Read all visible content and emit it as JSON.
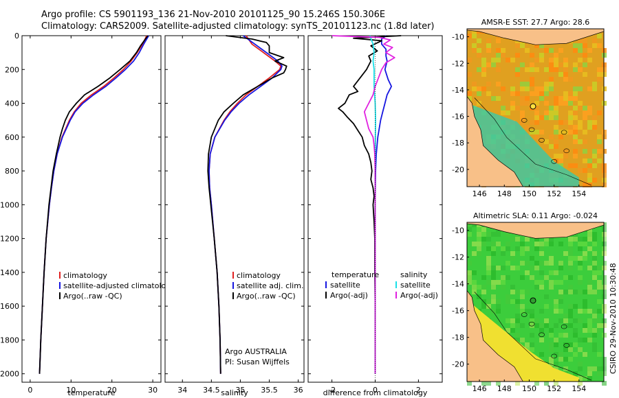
{
  "header": {
    "line1": "Argo profile: CS 5901193_136 21-Nov-2010 20101125_90 15.246S 150.306E",
    "line2": "Climatology: CARS2009. Satellite-adjusted climatology: synTS_20101123.nc (1.8d later)"
  },
  "colors": {
    "climatology": "#e02020",
    "satellite": "#1515e0",
    "argo": "#000000",
    "satellite_salinity": "#18e0e8",
    "argo_adj_salinity": "#e020e0",
    "land": "#f8c088",
    "sst_ocean": "#e0a020",
    "sla_ocean": "#3ccd3c"
  },
  "chart_data": [
    {
      "id": "temperature",
      "type": "line",
      "xlabel": "temperature",
      "ylabel": "",
      "xlim": [
        -2,
        32
      ],
      "ylim": [
        2050,
        0
      ],
      "xticks": [
        "0",
        "10",
        "20",
        "30"
      ],
      "yticks": [
        "0",
        "200",
        "400",
        "600",
        "800",
        "1000",
        "1200",
        "1400",
        "1600",
        "1800",
        "2000"
      ],
      "legend": [
        "climatology",
        "satellite-adjusted climatology",
        "Argo(..raw -QC)"
      ],
      "series": [
        {
          "name": "climatology",
          "depth": [
            0,
            50,
            100,
            150,
            200,
            250,
            300,
            350,
            400,
            450,
            500,
            600,
            700,
            800,
            900,
            1000,
            1200,
            1400,
            1600,
            1800,
            2000
          ],
          "values": [
            28.5,
            27.5,
            26.2,
            24.7,
            22.8,
            20.5,
            18.0,
            15.0,
            12.5,
            10.8,
            9.6,
            7.8,
            6.6,
            5.8,
            5.2,
            4.7,
            3.9,
            3.4,
            3.0,
            2.6,
            2.3
          ]
        },
        {
          "name": "satellite-adjusted climatology",
          "depth": [
            0,
            50,
            100,
            150,
            200,
            250,
            300,
            350,
            400,
            450,
            500,
            600,
            700,
            800,
            900,
            1000,
            1200,
            1400,
            1600,
            1800,
            2000
          ],
          "values": [
            29.0,
            27.8,
            26.7,
            25.3,
            23.3,
            21.0,
            18.5,
            15.5,
            12.9,
            11.0,
            9.8,
            7.9,
            6.6,
            5.8,
            5.2,
            4.7,
            3.9,
            3.4,
            3.0,
            2.6,
            2.3
          ]
        },
        {
          "name": "Argo(..raw -QC)",
          "depth": [
            0,
            20,
            60,
            100,
            150,
            200,
            250,
            300,
            350,
            400,
            450,
            500,
            550,
            600,
            700,
            800,
            900,
            1000,
            1200,
            1400,
            1600,
            1800,
            2000
          ],
          "values": [
            28.8,
            28.2,
            27.0,
            26.0,
            24.4,
            22.0,
            19.5,
            16.6,
            13.3,
            11.3,
            9.6,
            8.6,
            7.9,
            7.3,
            6.4,
            5.6,
            5.1,
            4.6,
            3.9,
            3.4,
            3.0,
            2.6,
            2.3
          ]
        }
      ]
    },
    {
      "id": "salinity",
      "type": "line",
      "xlabel": "salinity",
      "xlim": [
        33.7,
        36.1
      ],
      "ylim": [
        2050,
        0
      ],
      "xticks": [
        "34",
        "34.5",
        "35",
        "35.5",
        "36"
      ],
      "legend": [
        "climatology",
        "satellite adj. clim.",
        "Argo(..raw -QC)"
      ],
      "annotation": [
        "Argo AUSTRALIA",
        "PI: Susan Wijffels"
      ],
      "series": [
        {
          "name": "climatology",
          "depth": [
            0,
            50,
            100,
            150,
            180,
            200,
            250,
            300,
            350,
            400,
            450,
            500,
            600,
            700,
            800,
            900,
            1000,
            1200,
            1400,
            1600,
            1800,
            2000
          ],
          "values": [
            35.1,
            35.2,
            35.4,
            35.6,
            35.7,
            35.68,
            35.5,
            35.3,
            35.1,
            34.95,
            34.82,
            34.72,
            34.56,
            34.48,
            34.46,
            34.47,
            34.5,
            34.55,
            34.6,
            34.63,
            34.65,
            34.66
          ]
        },
        {
          "name": "satellite adj. clim.",
          "depth": [
            0,
            50,
            100,
            150,
            180,
            200,
            250,
            300,
            350,
            400,
            450,
            500,
            600,
            700,
            800,
            900,
            1000,
            1200,
            1400,
            1600,
            1800,
            2000
          ],
          "values": [
            35.05,
            35.25,
            35.45,
            35.65,
            35.72,
            35.7,
            35.55,
            35.35,
            35.15,
            34.98,
            34.84,
            34.73,
            34.56,
            34.48,
            34.46,
            34.47,
            34.5,
            34.55,
            34.6,
            34.63,
            34.65,
            34.66
          ]
        },
        {
          "name": "Argo(..raw -QC)",
          "depth": [
            0,
            20,
            40,
            60,
            100,
            130,
            150,
            180,
            200,
            220,
            250,
            300,
            350,
            400,
            450,
            500,
            600,
            700,
            800,
            900,
            1000,
            1200,
            1400,
            1600,
            1800,
            2000
          ],
          "values": [
            34.75,
            35.2,
            35.45,
            35.5,
            35.5,
            35.75,
            35.6,
            35.8,
            35.78,
            35.75,
            35.55,
            35.3,
            35.05,
            34.88,
            34.72,
            34.62,
            34.5,
            34.45,
            34.44,
            34.46,
            34.49,
            34.55,
            34.6,
            34.63,
            34.65,
            34.66
          ]
        }
      ]
    },
    {
      "id": "difference",
      "type": "line",
      "xlabel": "difference from climatology",
      "xlim": [
        -3.1,
        3.1
      ],
      "ylim": [
        2050,
        0
      ],
      "xticks": [
        "-2",
        "0",
        "2"
      ],
      "legend_temperature": [
        "temperature",
        "satellite",
        "Argo(-adj)"
      ],
      "legend_salinity": [
        "salinity",
        "satellite",
        "Argo(-adj)"
      ],
      "series": [
        {
          "name": "temperature satellite",
          "depth": [
            0,
            20,
            50,
            80,
            120,
            150,
            200,
            260,
            300,
            350,
            400,
            450,
            500,
            600,
            700,
            800,
            1000,
            1500,
            2000
          ],
          "values": [
            0.5,
            0.3,
            0.3,
            0.5,
            0.5,
            0.55,
            0.45,
            0.6,
            0.75,
            0.55,
            0.45,
            0.35,
            0.25,
            0.12,
            0.05,
            0.02,
            0.0,
            0.0,
            0.0
          ]
        },
        {
          "name": "temperature Argo(-adj)",
          "depth": [
            0,
            15,
            30,
            60,
            90,
            120,
            150,
            200,
            250,
            300,
            330,
            350,
            400,
            430,
            450,
            480,
            520,
            560,
            600,
            650,
            700,
            750,
            800,
            850,
            900,
            950,
            1000,
            1100,
            1200,
            1400,
            1600,
            1800,
            2000
          ],
          "values": [
            1.2,
            -1.0,
            0.3,
            -0.2,
            0.1,
            -0.3,
            -0.2,
            -0.4,
            -0.7,
            -1.0,
            -0.8,
            -1.2,
            -1.4,
            -1.7,
            -1.5,
            -1.3,
            -1.0,
            -0.8,
            -0.6,
            -0.5,
            -0.3,
            -0.2,
            -0.15,
            -0.2,
            -0.1,
            -0.05,
            -0.1,
            -0.05,
            -0.02,
            -0.02,
            0.0,
            0.0,
            0.0
          ]
        },
        {
          "name": "salinity satellite",
          "depth": [
            0,
            50,
            100,
            150,
            200,
            300,
            400,
            500,
            700,
            1000,
            1500,
            2000
          ],
          "values": [
            -0.25,
            -0.1,
            -0.05,
            -0.1,
            -0.05,
            -0.05,
            0.0,
            0.02,
            0.0,
            0.0,
            0.0,
            0.0
          ]
        },
        {
          "name": "salinity Argo(-adj)",
          "depth": [
            0,
            10,
            25,
            50,
            70,
            100,
            130,
            160,
            200,
            250,
            300,
            350,
            400,
            450,
            500,
            550,
            600,
            650,
            700,
            800,
            900,
            1000,
            1200,
            1500,
            2000
          ],
          "values": [
            -2.0,
            0.2,
            0.7,
            0.4,
            0.8,
            0.5,
            0.9,
            0.5,
            0.3,
            0.15,
            0.0,
            -0.1,
            -0.3,
            -0.5,
            -0.4,
            -0.3,
            -0.1,
            -0.05,
            -0.02,
            0.0,
            0.0,
            0.0,
            0.0,
            0.0,
            0.0
          ]
        }
      ]
    },
    {
      "id": "sst_map",
      "type": "heatmap",
      "title": "AMSR-E SST: 27.7 Argo: 28.6",
      "xlim": [
        145,
        156
      ],
      "ylim": [
        -21.3,
        -9.4
      ],
      "xticks": [
        "146",
        "148",
        "150",
        "152",
        "154"
      ],
      "yticks": [
        "-10",
        "-12",
        "-14",
        "-16",
        "-18",
        "-20"
      ],
      "argo_position": {
        "lon": 150.306,
        "lat": -15.246
      }
    },
    {
      "id": "sla_map",
      "type": "heatmap",
      "title": "Altimetric SLA: 0.11  Argo: -0.024",
      "xlim": [
        145,
        156
      ],
      "ylim": [
        -21.3,
        -9.4
      ],
      "xticks": [
        "146",
        "148",
        "150",
        "152",
        "154"
      ],
      "yticks": [
        "-10",
        "-12",
        "-14",
        "-16",
        "-18",
        "-20"
      ],
      "argo_position": {
        "lon": 150.306,
        "lat": -15.246
      }
    }
  ],
  "footer": {
    "stamp": "CSIRO 29-Nov-2010 10:30:48"
  }
}
